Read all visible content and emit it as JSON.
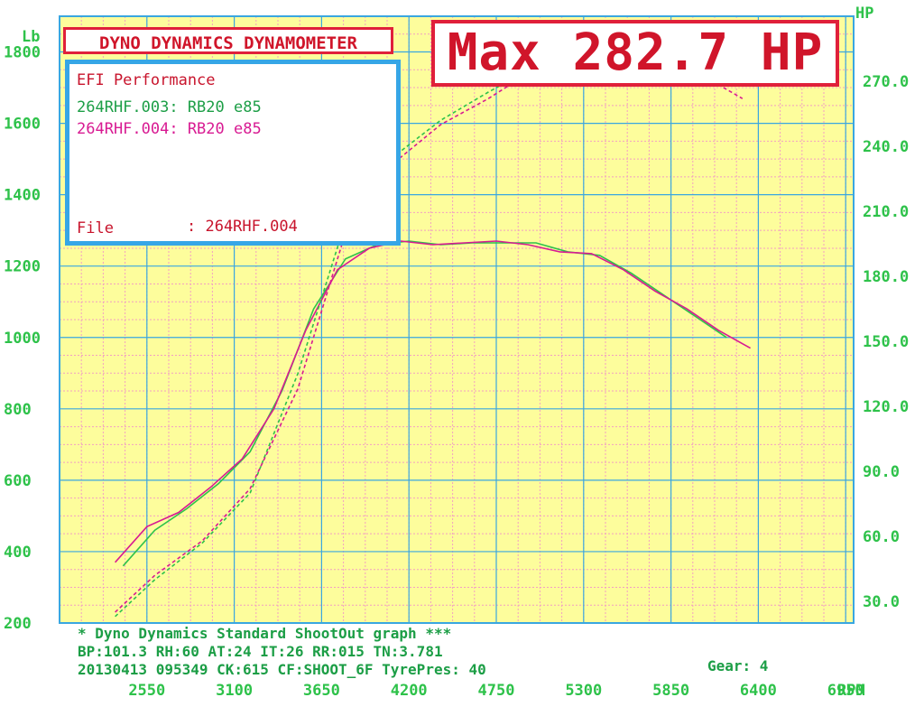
{
  "header": {
    "brand_title": "DYNO DYNAMICS DYNAMOMETER",
    "max_label": "Max 282.7 HP"
  },
  "legend": {
    "title": "EFI Performance",
    "run1": "264RHF.003: RB20 e85",
    "run2": "264RHF.004: RB20 e85",
    "file_label": "File",
    "file_value": ": 264RHF.004"
  },
  "footer": {
    "line1": "* Dyno Dynamics Standard ShootOut graph ***",
    "line2": "BP:101.3 RH:60 AT:24 IT:26  RR:015 TN:3.781",
    "line3": "20130413 095349 CK:615 CF:SHOOT_6F TyrePres: 40",
    "gear": "Gear: 4"
  },
  "colors": {
    "background": "#fdfd9c",
    "grid_major": "#3aa7e0",
    "grid_minor": "#f2a0c2",
    "axis_text": "#2ec24a",
    "run1_color": "#2ec24a",
    "run2_color": "#d81a92",
    "accent_red": "#e0203a",
    "legend_border": "#36a6e6"
  },
  "chart_data": {
    "type": "line",
    "xlabel": "RPM",
    "ylabel_left": "Lb",
    "ylabel_right": "HP",
    "x_ticks": [
      2550,
      3100,
      3650,
      4200,
      4750,
      5300,
      5850,
      6400,
      6950
    ],
    "y_left_ticks": [
      200,
      400,
      600,
      800,
      1000,
      1200,
      1400,
      1600,
      1800
    ],
    "y_right_ticks": [
      "30.0",
      "60.0",
      "90.0",
      "120.0",
      "150.0",
      "180.0",
      "210.0",
      "240.0",
      "270.0"
    ],
    "xlim": [
      2000,
      7000
    ],
    "ylim_left": [
      200,
      1900
    ],
    "ylim_right": [
      20,
      300
    ],
    "grid": true,
    "series": [
      {
        "name": "264RHF.003: RB20 e85",
        "measure": "tractive effort",
        "axis": "left",
        "style": "solid",
        "x": [
          2400,
          2600,
          2800,
          3000,
          3200,
          3400,
          3600,
          3800,
          4000,
          4200,
          4400,
          4600,
          4800,
          5000,
          5200,
          5400,
          5600,
          5800,
          6000,
          6200
        ],
        "y": [
          360,
          460,
          520,
          590,
          680,
          850,
          1080,
          1220,
          1260,
          1270,
          1260,
          1265,
          1265,
          1265,
          1240,
          1230,
          1180,
          1120,
          1060,
          1000
        ]
      },
      {
        "name": "264RHF.004: RB20 e85",
        "measure": "tractive effort",
        "axis": "left",
        "style": "solid",
        "x": [
          2350,
          2550,
          2750,
          2950,
          3150,
          3350,
          3550,
          3750,
          3950,
          4150,
          4350,
          4550,
          4750,
          4950,
          5150,
          5350,
          5550,
          5750,
          5950,
          6150,
          6350
        ],
        "y": [
          370,
          470,
          510,
          580,
          660,
          800,
          1020,
          1190,
          1250,
          1270,
          1260,
          1265,
          1270,
          1260,
          1240,
          1235,
          1190,
          1130,
          1080,
          1020,
          970
        ]
      },
      {
        "name": "264RHF.003: RB20 e85",
        "measure": "power",
        "axis": "right",
        "style": "dashed",
        "x": [
          2350,
          2600,
          2900,
          3200,
          3500,
          3800,
          4100,
          4400,
          4700,
          5000,
          5300,
          5600,
          5900,
          6200
        ],
        "y": [
          23,
          40,
          57,
          80,
          135,
          205,
          235,
          252,
          265,
          277,
          280,
          282.7,
          278,
          272
        ]
      },
      {
        "name": "264RHF.004: RB20 e85",
        "measure": "power",
        "axis": "right",
        "style": "dashed",
        "x": [
          2350,
          2600,
          2900,
          3200,
          3500,
          3800,
          4100,
          4400,
          4700,
          5000,
          5300,
          5600,
          5900,
          6300
        ],
        "y": [
          25,
          42,
          58,
          82,
          128,
          200,
          232,
          250,
          262,
          276,
          280,
          282.7,
          279,
          262
        ]
      }
    ]
  }
}
